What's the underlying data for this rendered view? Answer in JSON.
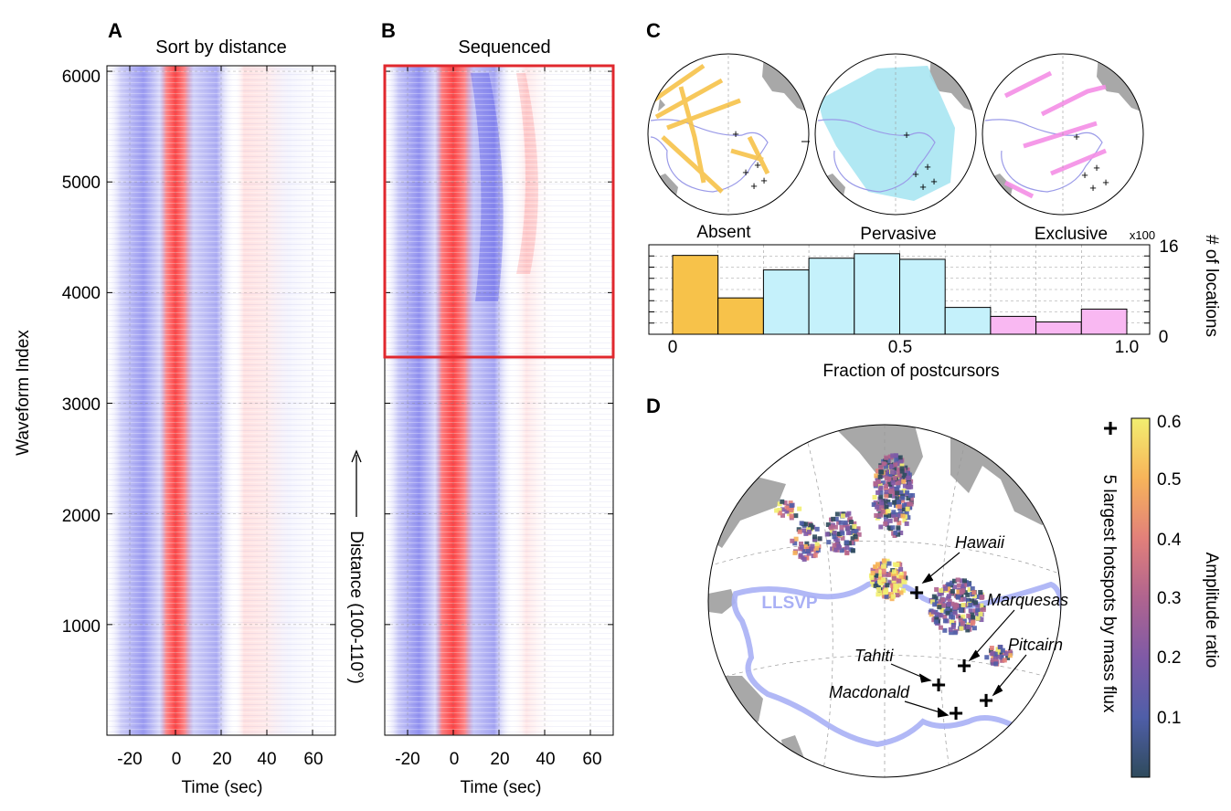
{
  "panels": {
    "A": {
      "letter": "A",
      "title": "Sort by distance"
    },
    "B": {
      "letter": "B",
      "title": "Sequenced"
    },
    "C": {
      "letter": "C"
    },
    "D": {
      "letter": "D"
    }
  },
  "waveform": {
    "ylabel": "Waveform Index",
    "xlabel": "Time (sec)",
    "y_ticks": [
      "6000",
      "5000",
      "4000",
      "3000",
      "2000",
      "1000"
    ],
    "x_ticks": [
      "-20",
      "0",
      "20",
      "40",
      "60"
    ],
    "distance_label": "Distance (100-110°)"
  },
  "maps_c": {
    "labels": [
      "Absent",
      "Pervasive",
      "Exclusive"
    ],
    "colors": [
      "#f7c24a",
      "#a8e6f2",
      "#f48ee6"
    ]
  },
  "map_d": {
    "llsvp_label": "LLSVP",
    "hotspots": [
      "Hawaii",
      "Marquesas",
      "Tahiti",
      "Pitcairn",
      "Macdonald"
    ],
    "legend_symbol": "+",
    "legend_text": "5 largest hotspots by mass flux",
    "colorbar_label": "Amplitude ratio",
    "colorbar_ticks": [
      "0.6",
      "0.5",
      "0.4",
      "0.3",
      "0.2",
      "0.1"
    ],
    "colormap": [
      "#2f4b5c",
      "#4f5ea8",
      "#7f5aa6",
      "#b0648f",
      "#e2807a",
      "#f7b45a",
      "#f2ee70"
    ]
  },
  "chart_data": [
    {
      "type": "heatmap",
      "title": "Sort by distance",
      "xlabel": "Time (sec)",
      "ylabel": "Waveform Index",
      "xlim": [
        -30,
        70
      ],
      "ylim": [
        0,
        6050
      ],
      "x_ticks": [
        -20,
        0,
        20,
        40,
        60
      ],
      "y_ticks": [
        1000,
        2000,
        3000,
        4000,
        5000,
        6000
      ],
      "colors": {
        "positive": "#ff3b3b",
        "negative": "#4a4ae6"
      },
      "grid": true
    },
    {
      "type": "heatmap",
      "title": "Sequenced",
      "xlabel": "Time (sec)",
      "xlim": [
        -30,
        70
      ],
      "ylim": [
        0,
        6050
      ],
      "x_ticks": [
        -20,
        0,
        20,
        40,
        60
      ],
      "highlight_box": {
        "x": [
          -30,
          70
        ],
        "y": [
          3430,
          6050
        ],
        "color": "#e0282e"
      },
      "grid": true
    },
    {
      "type": "bar",
      "xlabel": "Fraction of postcursors",
      "ylabel": "# of locations",
      "axis_multiplier": "x100",
      "xlim": [
        0,
        1.0
      ],
      "ylim": [
        0,
        16
      ],
      "x_ticks": [
        "0",
        "0.5",
        "1.0"
      ],
      "y_ticks": [
        "0",
        "16"
      ],
      "bin_width": 0.1,
      "bins": [
        0.05,
        0.15,
        0.25,
        0.35,
        0.45,
        0.55,
        0.65,
        0.75,
        0.85,
        0.95
      ],
      "values": [
        14.1,
        6.5,
        11.5,
        13.6,
        14.4,
        13.4,
        4.8,
        3.2,
        2.2,
        4.5
      ],
      "bar_colors": [
        "#f7c24a",
        "#f7c24a",
        "#c5f1fb",
        "#c5f1fb",
        "#c5f1fb",
        "#c5f1fb",
        "#c5f1fb",
        "#f9b8f2",
        "#f9b8f2",
        "#f9b8f2"
      ],
      "grid": true
    }
  ]
}
